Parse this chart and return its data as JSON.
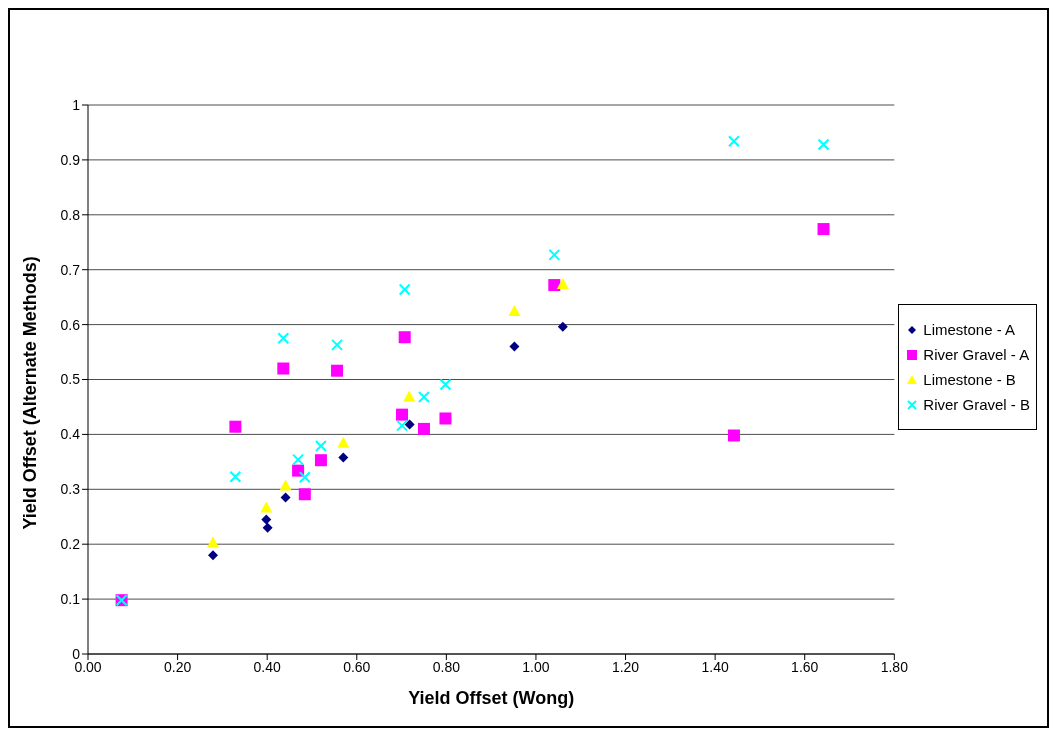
{
  "chart_data": {
    "type": "scatter",
    "xlabel": "Yield Offset (Wong)",
    "ylabel": "Yield Offset (Alternate Methods)",
    "series": [
      {
        "name": "Limestone - A",
        "color": "#000080",
        "marker": "diamond",
        "x": [
          0.279,
          0.398,
          0.401,
          0.441,
          0.57,
          0.718,
          0.952,
          1.06
        ],
        "values": [
          0.18,
          0.245,
          0.23,
          0.285,
          0.358,
          0.418,
          0.56,
          0.596
        ]
      },
      {
        "name": "River Gravel - A",
        "color": "#ff00ff",
        "marker": "square",
        "x": [
          0.075,
          0.329,
          0.436,
          0.469,
          0.484,
          0.52,
          0.556,
          0.701,
          0.707,
          0.75,
          0.798,
          1.041,
          1.442,
          1.642
        ],
        "values": [
          0.098,
          0.414,
          0.52,
          0.334,
          0.291,
          0.353,
          0.516,
          0.436,
          0.577,
          0.41,
          0.429,
          0.672,
          0.398,
          0.774
        ]
      },
      {
        "name": "Limestone - B",
        "color": "#ffff00",
        "marker": "triangle",
        "x": [
          0.279,
          0.398,
          0.441,
          0.57,
          0.717,
          0.952,
          1.06
        ],
        "values": [
          0.203,
          0.267,
          0.307,
          0.385,
          0.469,
          0.625,
          0.674
        ]
      },
      {
        "name": "River Gravel - B",
        "color": "#00ffff",
        "marker": "cross",
        "x": [
          0.075,
          0.329,
          0.436,
          0.469,
          0.484,
          0.52,
          0.556,
          0.701,
          0.707,
          0.75,
          0.798,
          1.041,
          1.442,
          1.642
        ],
        "values": [
          0.098,
          0.323,
          0.575,
          0.354,
          0.322,
          0.379,
          0.563,
          0.416,
          0.664,
          0.468,
          0.491,
          0.727,
          0.934,
          0.928
        ]
      }
    ],
    "xlim": [
      0,
      1.8
    ],
    "xticks": [
      {
        "value": 0,
        "label": "0.00"
      },
      {
        "value": 0.2,
        "label": "0.20"
      },
      {
        "value": 0.4,
        "label": "0.40"
      },
      {
        "value": 0.6,
        "label": "0.60"
      },
      {
        "value": 0.8,
        "label": "0.80"
      },
      {
        "value": 1.0,
        "label": "1.00"
      },
      {
        "value": 1.2,
        "label": "1.20"
      },
      {
        "value": 1.4,
        "label": "1.40"
      },
      {
        "value": 1.6,
        "label": "1.60"
      },
      {
        "value": 1.8,
        "label": "1.80"
      }
    ],
    "ylim": [
      0,
      1
    ],
    "yticks": [
      0,
      0.1,
      0.2,
      0.3,
      0.4,
      0.5,
      0.6,
      0.7,
      0.8,
      0.9,
      1
    ],
    "grid": "y",
    "legend": "right"
  }
}
